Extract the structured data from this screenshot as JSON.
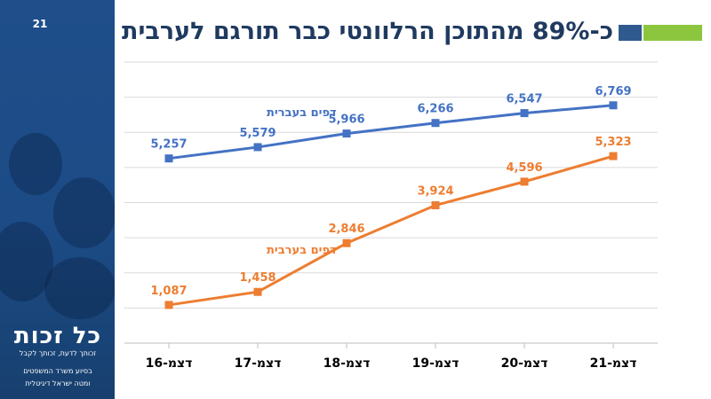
{
  "slide": {
    "page_number": "21",
    "title": "כ-89% מהתוכן הרלוונטי כבר תורגם  לערבית",
    "logo_text": "כל זכות",
    "tagline": "זכותך לדעת, זכותך לקבל",
    "footer_line1": "בסיוע משרד המשפטים",
    "footer_line2": "ומטה ישראל דיגיטלית"
  },
  "colors": {
    "hebrew_series": "#4472c4",
    "arabic_series": "#ed7d31",
    "title": "#1f3a5f",
    "sidebar": "#1f4e8a",
    "accent_blue": "#2e5a8f",
    "accent_green": "#8cc63f"
  },
  "chart_data": {
    "type": "line",
    "categories": [
      "דצמ-16",
      "דצמ-17",
      "דצמ-18",
      "דצמ-19",
      "דצמ-20",
      "דצמ-21"
    ],
    "series": [
      {
        "name": "דפים בעברית",
        "values": [
          5257,
          5579,
          5966,
          6266,
          6547,
          6769
        ],
        "labels": [
          "5,257",
          "5,579",
          "5,966",
          "6,266",
          "6,547",
          "6,769"
        ]
      },
      {
        "name": "דפים בערבית",
        "values": [
          1087,
          1458,
          2846,
          3924,
          4596,
          5323
        ],
        "labels": [
          "1,087",
          "1,458",
          "2,846",
          "3,924",
          "4,596",
          "5,323"
        ]
      }
    ],
    "ylim": [
      0,
      8000
    ],
    "grid": true,
    "markers": "square",
    "data_labels": true
  }
}
